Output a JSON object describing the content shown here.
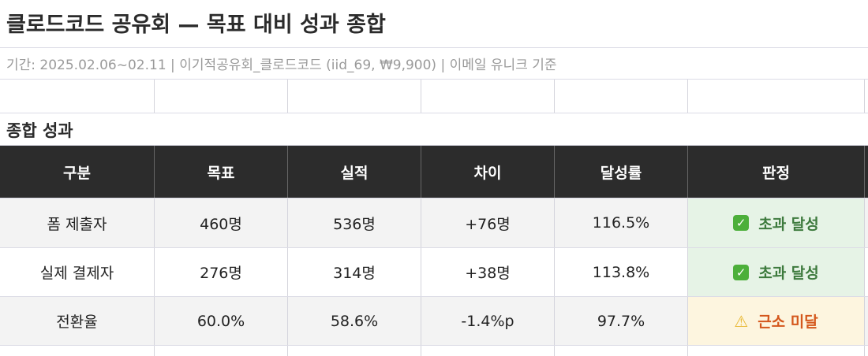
{
  "title": "클로드코드 공유회 — 목표 대비 성과 종합",
  "subtitle": "기간: 2025.02.06~02.11 | 이기적공유회_클로드코드 (iid_69, ₩9,900) | 이메일 유니크 기준",
  "section": "종합 성과",
  "headers": [
    "구분",
    "목표",
    "실적",
    "차이",
    "달성률",
    "판정"
  ],
  "rows": [
    {
      "cells": [
        "폼 제출자",
        "460명",
        "536명",
        "+76명",
        "116.5%"
      ],
      "verdict": "초과 달성",
      "icon": "check-mark-icon",
      "status": "ok"
    },
    {
      "cells": [
        "실제 결제자",
        "276명",
        "314명",
        "+38명",
        "113.8%"
      ],
      "verdict": "초과 달성",
      "icon": "check-mark-icon",
      "status": "ok"
    },
    {
      "cells": [
        "전환율",
        "60.0%",
        "58.6%",
        "-1.4%p",
        "97.7%"
      ],
      "verdict": "근소 미달",
      "icon": "warning-icon",
      "status": "warn"
    }
  ],
  "colors": {
    "ok_bg": "#e6f3e6",
    "ok_text": "#3d7a3d",
    "warn_bg": "#fdf5df",
    "warn_text": "#d4571c",
    "header_bg": "#2c2c2c"
  }
}
